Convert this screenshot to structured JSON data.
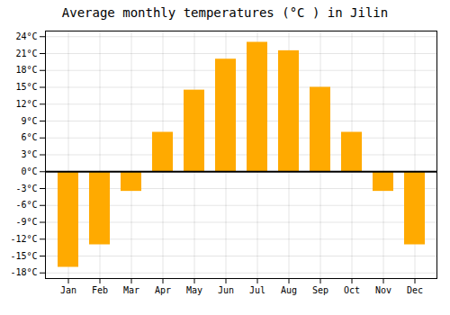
{
  "chart_data": {
    "type": "bar",
    "title": "Average monthly temperatures (°C ) in Jilin",
    "categories": [
      "Jan",
      "Feb",
      "Mar",
      "Apr",
      "May",
      "Jun",
      "Jul",
      "Aug",
      "Sep",
      "Oct",
      "Nov",
      "Dec"
    ],
    "values": [
      -17,
      -13,
      -3.5,
      7,
      14.5,
      20,
      23,
      21.5,
      15,
      7,
      -3.5,
      -13
    ],
    "color": "#FFAA00",
    "ylim": [
      -19,
      25
    ],
    "yticks": [
      {
        "value": -18,
        "label": "-18°C"
      },
      {
        "value": -15,
        "label": "-15°C"
      },
      {
        "value": -12,
        "label": "-12°C"
      },
      {
        "value": -9,
        "label": "-9°C"
      },
      {
        "value": -6,
        "label": "-6°C"
      },
      {
        "value": -3,
        "label": "-3°C"
      },
      {
        "value": 0,
        "label": "0°C"
      },
      {
        "value": 3,
        "label": "3°C"
      },
      {
        "value": 6,
        "label": "6°C"
      },
      {
        "value": 9,
        "label": "9°C"
      },
      {
        "value": 12,
        "label": "12°C"
      },
      {
        "value": 15,
        "label": "15°C"
      },
      {
        "value": 18,
        "label": "18°C"
      },
      {
        "value": 21,
        "label": "21°C"
      },
      {
        "value": 24,
        "label": "24°C"
      }
    ],
    "grid": true
  }
}
